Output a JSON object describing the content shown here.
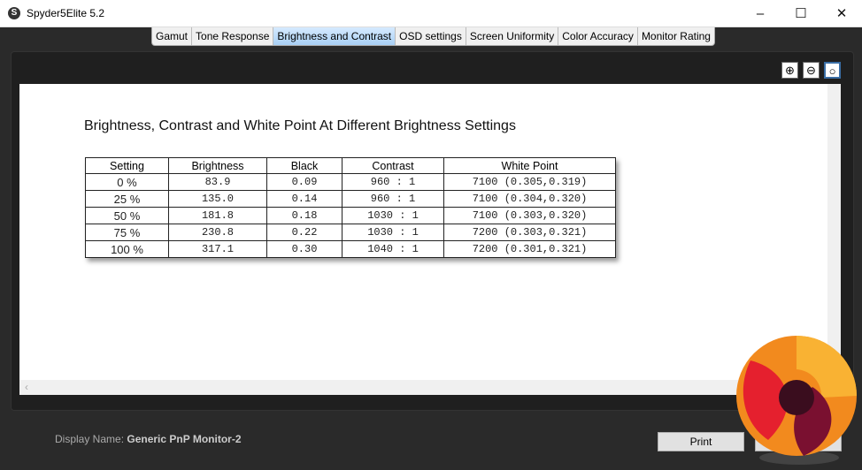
{
  "window": {
    "title": "Spyder5Elite 5.2",
    "icon": "spyder-icon",
    "controls": [
      "minimize-icon",
      "maximize-icon",
      "close-icon"
    ]
  },
  "tabs": [
    {
      "label": "Gamut"
    },
    {
      "label": "Tone Response"
    },
    {
      "label": "Brightness and Contrast",
      "active": true
    },
    {
      "label": "OSD settings"
    },
    {
      "label": "Screen Uniformity"
    },
    {
      "label": "Color Accuracy"
    },
    {
      "label": "Monitor Rating"
    }
  ],
  "zoom_tools": [
    "zoom-in-icon",
    "zoom-out-icon",
    "zoom-fit-icon"
  ],
  "report": {
    "title": "Brightness, Contrast and White Point At Different Brightness Settings",
    "columns": [
      "Setting",
      "Brightness",
      "Black",
      "Contrast",
      "White Point"
    ],
    "rows": [
      [
        "0 %",
        "83.9",
        "0.09",
        "960 : 1",
        "7100 (0.305,0.319)"
      ],
      [
        "25 %",
        "135.0",
        "0.14",
        "960 : 1",
        "7100 (0.304,0.320)"
      ],
      [
        "50 %",
        "181.8",
        "0.18",
        "1030 : 1",
        "7100 (0.303,0.320)"
      ],
      [
        "75 %",
        "230.8",
        "0.22",
        "1030 : 1",
        "7200 (0.303,0.321)"
      ],
      [
        "100 %",
        "317.1",
        "0.30",
        "1040 : 1",
        "7200 (0.301,0.321)"
      ]
    ]
  },
  "footer": {
    "display_label": "Display Name:",
    "display_value": "Generic PnP Monitor-2",
    "print_label": "Print"
  },
  "colors": {
    "accent_tab": "#a8d0f5",
    "background": "#2a2a2a"
  }
}
